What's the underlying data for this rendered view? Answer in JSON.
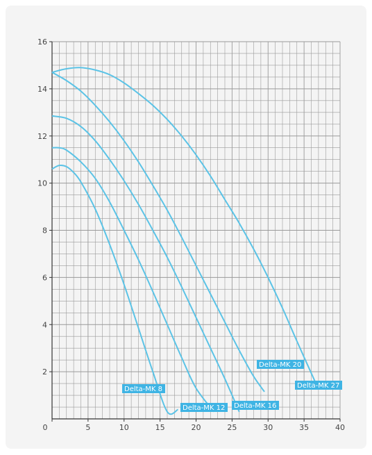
{
  "colors": {
    "curve": "#5bc3e6",
    "label_bg": "#3fb4e4",
    "grid": "#9a9a9a",
    "axis": "#333333",
    "panel": "#f4f4f4"
  },
  "chart_data": {
    "type": "line",
    "title": "",
    "xlabel": "",
    "ylabel": "",
    "xlim": [
      0,
      40
    ],
    "ylim": [
      0,
      16
    ],
    "x_ticks": [
      0,
      5,
      10,
      15,
      20,
      25,
      30,
      35,
      40
    ],
    "y_ticks": [
      2,
      4,
      6,
      8,
      10,
      12,
      14,
      16
    ],
    "x_minor_step": 1,
    "y_minor_step": 0.5,
    "grid": true,
    "series": [
      {
        "name": "Delta-MK 8",
        "x": [
          0,
          1,
          2,
          3,
          4,
          6,
          8,
          10,
          12,
          14,
          16,
          17.5
        ],
        "y": [
          10.6,
          10.75,
          10.7,
          10.45,
          10.05,
          8.9,
          7.4,
          5.7,
          3.85,
          2.0,
          0.3,
          0.4
        ]
      },
      {
        "name": "Delta-MK 12",
        "x": [
          0,
          1,
          2,
          4,
          6,
          8,
          10,
          12,
          14,
          16,
          18,
          20,
          22.5
        ],
        "y": [
          11.5,
          11.5,
          11.4,
          10.9,
          10.2,
          9.2,
          8.0,
          6.75,
          5.4,
          4.0,
          2.6,
          1.3,
          0.3
        ]
      },
      {
        "name": "Delta-MK 16",
        "x": [
          0,
          2,
          4,
          6,
          8,
          10,
          12,
          14,
          16,
          18,
          20,
          22,
          24,
          26
        ],
        "y": [
          12.85,
          12.75,
          12.4,
          11.8,
          11.0,
          10.1,
          9.1,
          8.0,
          6.85,
          5.6,
          4.3,
          3.0,
          1.7,
          0.3
        ]
      },
      {
        "name": "Delta-MK 20",
        "x": [
          0,
          2,
          4,
          6,
          8,
          10,
          12,
          14,
          16,
          18,
          20,
          22,
          24,
          26,
          28,
          29.5
        ],
        "y": [
          14.7,
          14.35,
          13.9,
          13.3,
          12.6,
          11.8,
          10.9,
          9.9,
          8.85,
          7.7,
          6.5,
          5.3,
          4.1,
          2.9,
          1.8,
          1.15
        ]
      },
      {
        "name": "Delta-MK 27",
        "x": [
          0,
          2,
          4,
          6,
          8,
          10,
          12,
          14,
          16,
          18,
          20,
          22,
          24,
          26,
          28,
          30,
          32,
          34,
          36.5
        ],
        "y": [
          14.7,
          14.85,
          14.9,
          14.8,
          14.6,
          14.25,
          13.8,
          13.3,
          12.7,
          12.0,
          11.2,
          10.3,
          9.3,
          8.3,
          7.2,
          6.0,
          4.7,
          3.3,
          1.6
        ]
      }
    ],
    "annotations": [
      {
        "text": "Delta-MK 8"
      },
      {
        "text": "Delta-MK 12"
      },
      {
        "text": "Delta-MK 16"
      },
      {
        "text": "Delta-MK 20"
      },
      {
        "text": "Delta-MK 27"
      }
    ]
  }
}
